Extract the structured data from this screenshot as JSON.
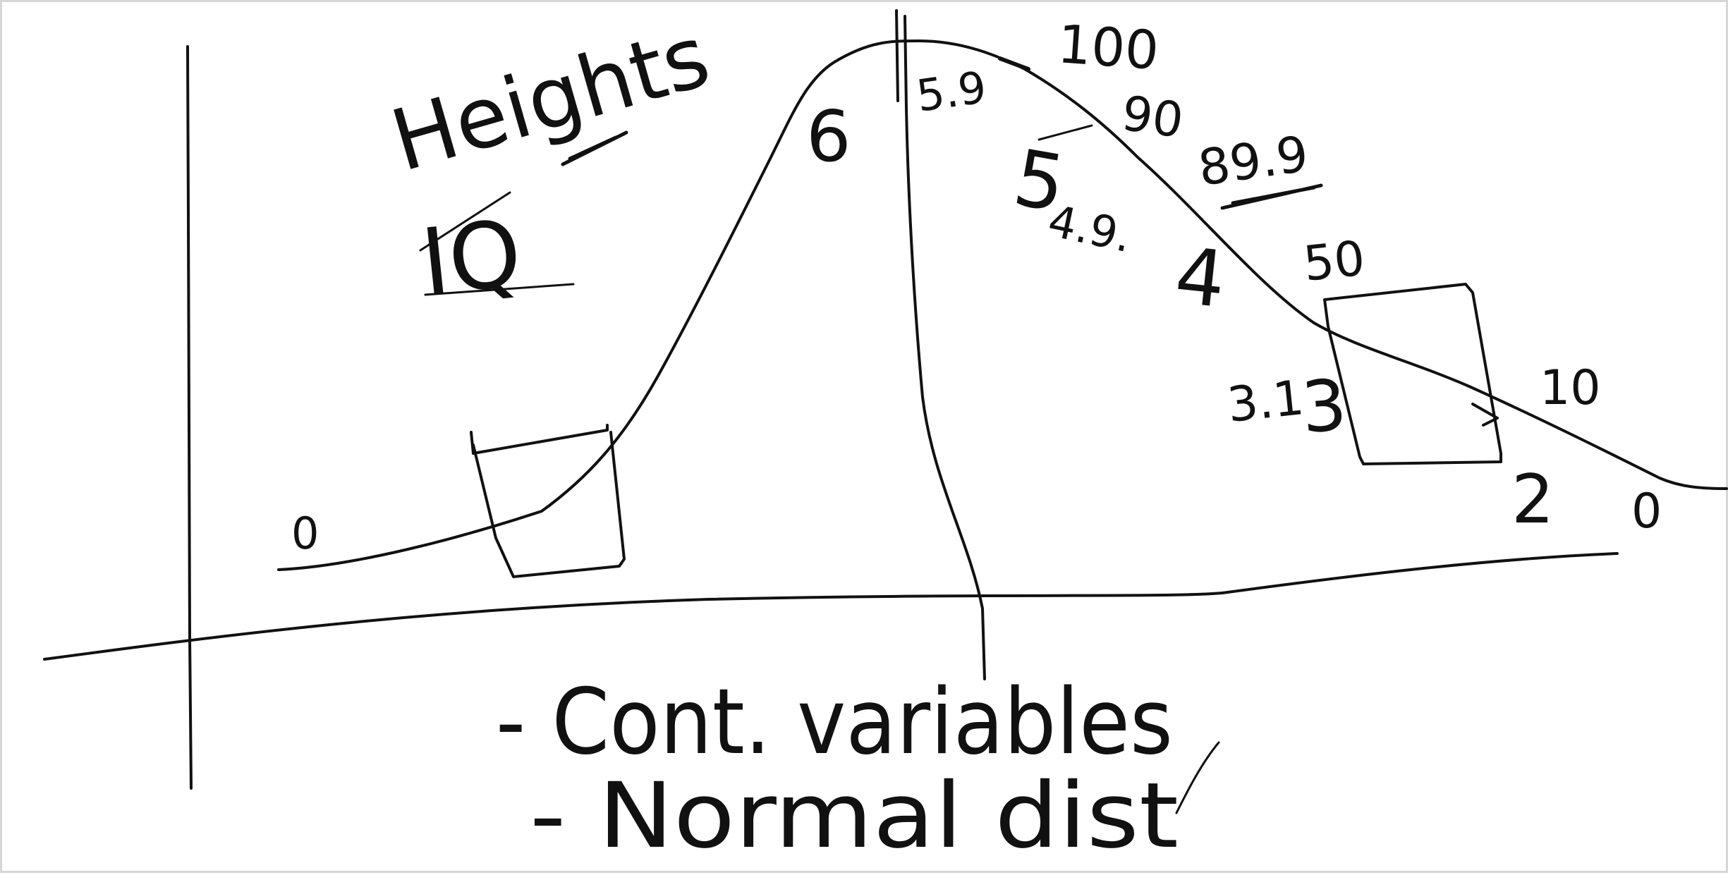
{
  "ink_color": "#111111",
  "labels": {
    "heights": "Heights",
    "iq": "IQ",
    "cont_variables": "- Cont. variables",
    "normal_dist": "- Normal dist",
    "peak_100": "100",
    "val_90": "90",
    "val_89_9": "89.9",
    "val_50": "50",
    "val_10": "10",
    "val_0_right": "0",
    "val_0_left": "0",
    "height_6": "6",
    "height_5_9": "5.9",
    "height_5": "5",
    "height_4_9": "4.9.",
    "height_4": "4",
    "height_3_1": "3.1",
    "height_3": "3",
    "height_2": "2"
  }
}
